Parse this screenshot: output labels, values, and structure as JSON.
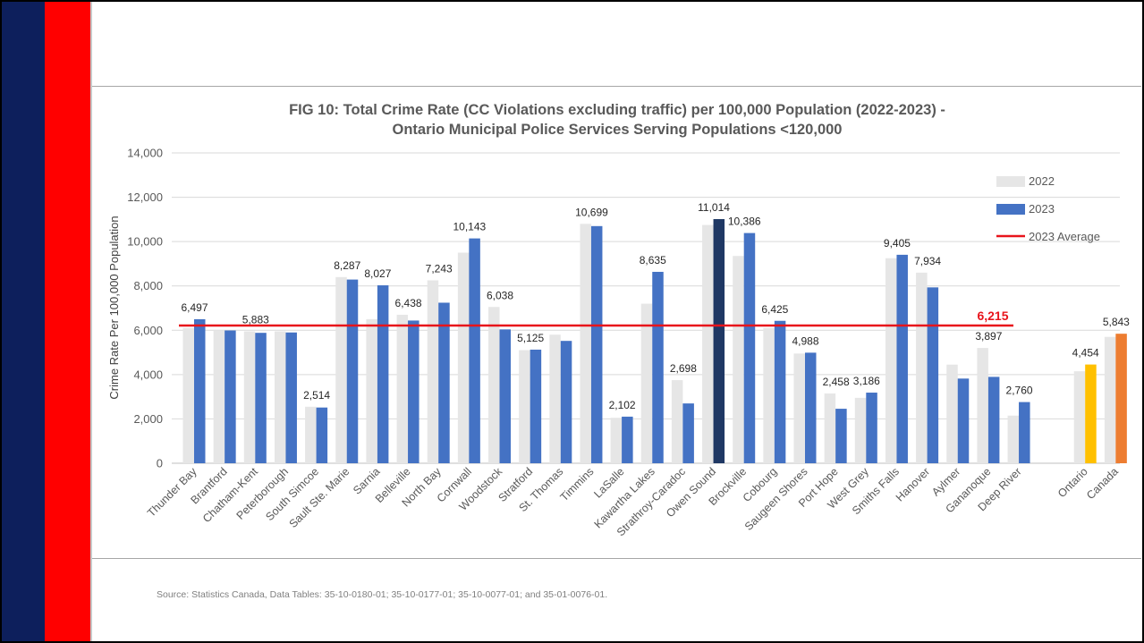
{
  "slide": {
    "source": "Source: Statistics Canada, Data Tables: 35-10-0180-01; 35-10-0177-01; 35-10-0077-01; and 35-01-0076-01.",
    "colors": {
      "navy_stripe": "#0d1f5c",
      "red_stripe": "#ff0000"
    }
  },
  "chart_data": {
    "type": "bar",
    "title": "FIG 10: Total Crime Rate (CC Violations excluding traffic) per 100,000 Population (2022-2023) -",
    "subtitle": "Ontario Municipal Police Services Serving Populations <120,000",
    "ylabel": "Crime Rate Per 100,000 Population",
    "xlabel": "",
    "ylim": [
      0,
      14000
    ],
    "yticks": [
      0,
      2000,
      4000,
      6000,
      8000,
      10000,
      12000,
      14000
    ],
    "ytick_labels": [
      "0",
      "2,000",
      "4,000",
      "6,000",
      "8,000",
      "10,000",
      "12,000",
      "14,000"
    ],
    "grid": true,
    "legend_position": "right",
    "categories": [
      "Thunder Bay",
      "Brantford",
      "Chatham-Kent",
      "Peterborough",
      "South Simcoe",
      "Sault Ste. Marie",
      "Sarnia",
      "Belleville",
      "North Bay",
      "Cornwall",
      "Woodstock",
      "Stratford",
      "St. Thomas",
      "Timmins",
      "LaSalle",
      "Kawartha Lakes",
      "Strathroy-Caradoc",
      "Owen Sound",
      "Brockville",
      "Cobourg",
      "Saugeen Shores",
      "Port Hope",
      "West Grey",
      "Smiths Falls",
      "Hanover",
      "Aylmer",
      "Gananoque",
      "Deep River",
      "Ontario",
      "Canada"
    ],
    "series": [
      {
        "name": "2022",
        "color": "#e6e6e6",
        "values": [
          6100,
          6000,
          5950,
          5950,
          2550,
          8400,
          6500,
          6700,
          8250,
          9500,
          7050,
          5100,
          5800,
          10800,
          2050,
          7200,
          3750,
          10750,
          9350,
          6100,
          4950,
          3150,
          2950,
          9250,
          8600,
          4450,
          5200,
          2150,
          4150,
          5700
        ]
      },
      {
        "name": "2023",
        "color": "#4472c4",
        "values": [
          6497,
          5990,
          5883,
          5900,
          2514,
          8287,
          8027,
          6438,
          7243,
          10143,
          6038,
          5125,
          5520,
          10699,
          2102,
          8635,
          2698,
          11014,
          10386,
          6425,
          4988,
          2458,
          3186,
          9405,
          7934,
          3820,
          3897,
          2760,
          4454,
          5843
        ],
        "highlight_colors": {
          "Owen Sound": "#1f3864",
          "Ontario": "#ffc000",
          "Canada": "#ed7d31"
        },
        "value_labels": [
          "6,497",
          "",
          "5,883",
          "",
          "2,514",
          "8,287",
          "8,027",
          "6,438",
          "7,243",
          "10,143",
          "6,038",
          "5,125",
          "",
          "10,699",
          "2,102",
          "8,635",
          "2,698",
          "11,014",
          "10,386",
          "6,425",
          "4,988",
          "2,458",
          "3,186",
          "9,405",
          "7,934",
          "",
          "3,897",
          "2,760",
          "4,454",
          "5,843"
        ]
      }
    ],
    "average_line": {
      "name": "2023 Average",
      "value": 6215,
      "label": "6,215",
      "color": "#e8141b"
    }
  }
}
